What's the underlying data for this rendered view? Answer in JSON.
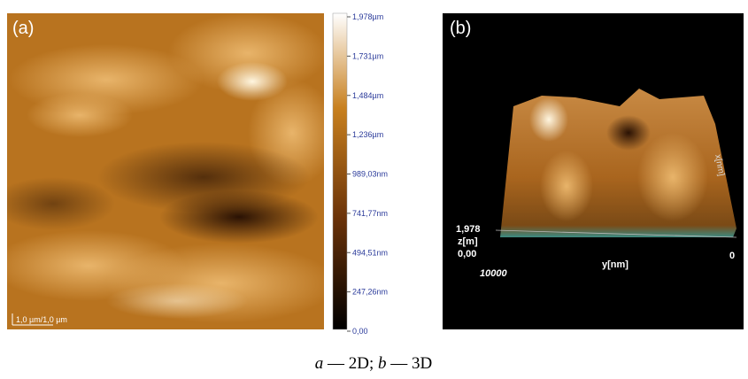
{
  "panel_a": {
    "label": "(a)",
    "scale_bar": "1,0 µm/1,0 µm"
  },
  "colorbar": {
    "ticks": [
      "1,978µm",
      "1,731µm",
      "1,484µm",
      "1,236µm",
      "989,03nm",
      "741,77nm",
      "494,51nm",
      "247,26nm",
      "0,00"
    ]
  },
  "panel_b": {
    "label": "(b)",
    "z_max": "1,978",
    "z_label": "z[m]",
    "z_min": "0,00",
    "y_start": "10000",
    "y_label": "y[nm]",
    "y_end": "0",
    "x_label": "x[nm]"
  },
  "caption": {
    "a": "a",
    "a_text": " — 2D; ",
    "b": "b",
    "b_text": " — 3D"
  }
}
